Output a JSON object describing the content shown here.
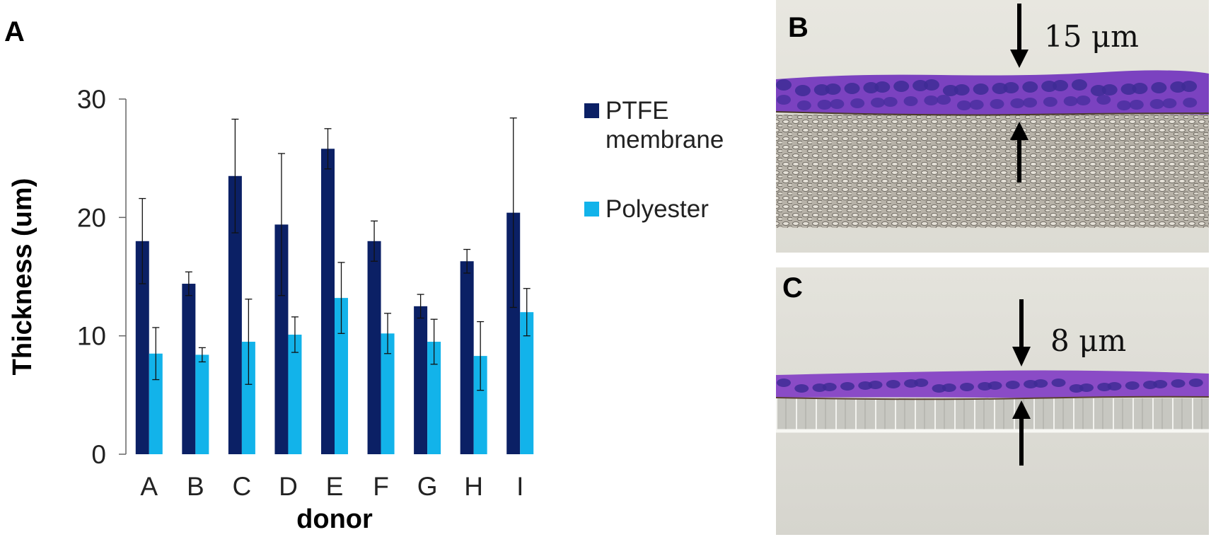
{
  "panel_labels": {
    "a": "A",
    "b": "B",
    "c": "C"
  },
  "chart_data": {
    "type": "bar",
    "categories": [
      "A",
      "B",
      "C",
      "D",
      "E",
      "F",
      "G",
      "H",
      "I"
    ],
    "series": [
      {
        "name": "PTFE membrane",
        "values": [
          18.0,
          14.4,
          23.5,
          19.4,
          25.8,
          18.0,
          12.5,
          16.3,
          20.4
        ],
        "errors": [
          3.6,
          1.0,
          4.8,
          6.0,
          1.7,
          1.7,
          1.0,
          1.0,
          8.0
        ],
        "color": "#0b2065"
      },
      {
        "name": "Polyester",
        "values": [
          8.5,
          8.4,
          9.5,
          10.1,
          13.2,
          10.2,
          9.5,
          8.3,
          12.0
        ],
        "errors": [
          2.2,
          0.6,
          3.6,
          1.5,
          3.0,
          1.7,
          1.9,
          2.9,
          2.0
        ],
        "color": "#12b3ea"
      }
    ],
    "legend": [
      "PTFE",
      "membrane",
      "Polyester"
    ],
    "xlabel": "donor",
    "ylabel": "Thickness (um)",
    "ylim": [
      0,
      30
    ],
    "yticks": [
      0,
      10,
      20,
      30
    ],
    "grid": false,
    "legend_position": "right",
    "error_bars": true
  },
  "micrographs": [
    {
      "label": "B",
      "scale_text": "15 μm",
      "scaffold": "PTFE membrane",
      "colors": {
        "tissue": "#7a3fbf",
        "nuclei": "#3c2a92",
        "background": "#e2e2da",
        "scaffold": "#a39e95"
      }
    },
    {
      "label": "C",
      "scale_text": "8 μm",
      "scaffold": "Polyester",
      "colors": {
        "tissue": "#8a4cc4",
        "nuclei": "#3c2a92",
        "background": "#dfdfd7",
        "scaffold": "#bcbcb6"
      }
    }
  ]
}
